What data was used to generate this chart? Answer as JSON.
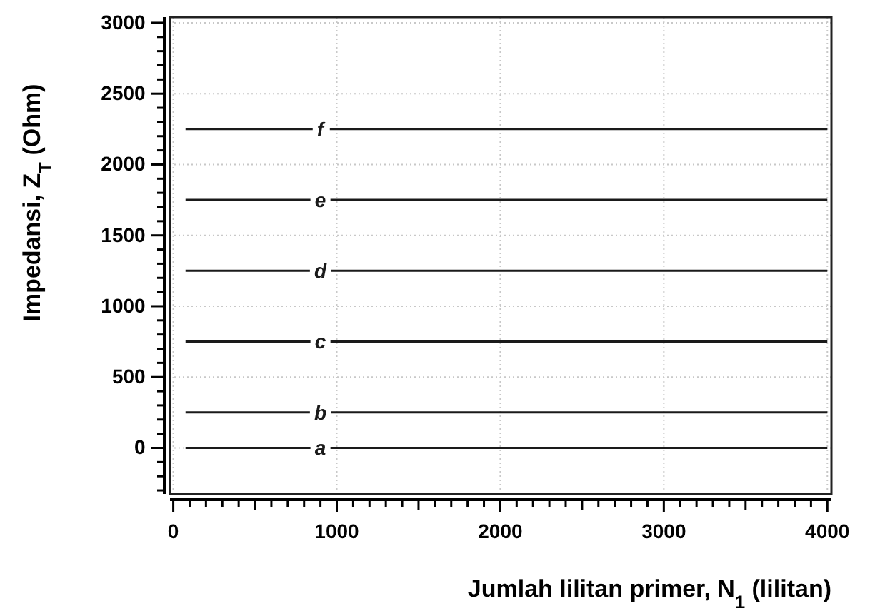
{
  "chart_data": {
    "type": "line",
    "xlabel": "Jumlah lilitan primer, N$_{1}$ (lilitan)",
    "ylabel": "Impedansi,  Z$_{T}$ (Ohm)",
    "xlim": [
      -20,
      4025
    ],
    "ylim": [
      -325,
      3040
    ],
    "xticks": [
      {
        "value": 0,
        "label": "0"
      },
      {
        "value": 100,
        "label": null
      },
      {
        "value": 200,
        "label": null
      },
      {
        "value": 300,
        "label": null
      },
      {
        "value": 400,
        "label": null
      },
      {
        "value": 500,
        "label": null
      },
      {
        "value": 600,
        "label": null
      },
      {
        "value": 700,
        "label": null
      },
      {
        "value": 800,
        "label": null
      },
      {
        "value": 900,
        "label": null
      },
      {
        "value": 1000,
        "label": "1000"
      },
      {
        "value": 1100,
        "label": null
      },
      {
        "value": 1200,
        "label": null
      },
      {
        "value": 1300,
        "label": null
      },
      {
        "value": 1400,
        "label": null
      },
      {
        "value": 1500,
        "label": null
      },
      {
        "value": 1600,
        "label": null
      },
      {
        "value": 1700,
        "label": null
      },
      {
        "value": 1800,
        "label": null
      },
      {
        "value": 1900,
        "label": null
      },
      {
        "value": 2000,
        "label": "2000"
      },
      {
        "value": 2100,
        "label": null
      },
      {
        "value": 2200,
        "label": null
      },
      {
        "value": 2300,
        "label": null
      },
      {
        "value": 2400,
        "label": null
      },
      {
        "value": 2500,
        "label": null
      },
      {
        "value": 2600,
        "label": null
      },
      {
        "value": 2700,
        "label": null
      },
      {
        "value": 2800,
        "label": null
      },
      {
        "value": 2900,
        "label": null
      },
      {
        "value": 3000,
        "label": "3000"
      },
      {
        "value": 3100,
        "label": null
      },
      {
        "value": 3200,
        "label": null
      },
      {
        "value": 3300,
        "label": null
      },
      {
        "value": 3400,
        "label": null
      },
      {
        "value": 3500,
        "label": null
      },
      {
        "value": 3600,
        "label": null
      },
      {
        "value": 3700,
        "label": null
      },
      {
        "value": 3800,
        "label": null
      },
      {
        "value": 3900,
        "label": null
      },
      {
        "value": 4000,
        "label": "4000"
      }
    ],
    "yticks": [
      {
        "value": -300,
        "label": null
      },
      {
        "value": -200,
        "label": null
      },
      {
        "value": -100,
        "label": null
      },
      {
        "value": 0,
        "label": "0"
      },
      {
        "value": 100,
        "label": null
      },
      {
        "value": 200,
        "label": null
      },
      {
        "value": 300,
        "label": null
      },
      {
        "value": 400,
        "label": null
      },
      {
        "value": 500,
        "label": "500"
      },
      {
        "value": 600,
        "label": null
      },
      {
        "value": 700,
        "label": null
      },
      {
        "value": 800,
        "label": null
      },
      {
        "value": 900,
        "label": null
      },
      {
        "value": 1000,
        "label": "1000"
      },
      {
        "value": 1100,
        "label": null
      },
      {
        "value": 1200,
        "label": null
      },
      {
        "value": 1300,
        "label": null
      },
      {
        "value": 1400,
        "label": null
      },
      {
        "value": 1500,
        "label": "1500"
      },
      {
        "value": 1600,
        "label": null
      },
      {
        "value": 1700,
        "label": null
      },
      {
        "value": 1800,
        "label": null
      },
      {
        "value": 1900,
        "label": null
      },
      {
        "value": 2000,
        "label": "2000"
      },
      {
        "value": 2100,
        "label": null
      },
      {
        "value": 2200,
        "label": null
      },
      {
        "value": 2300,
        "label": null
      },
      {
        "value": 2400,
        "label": null
      },
      {
        "value": 2500,
        "label": "2500"
      },
      {
        "value": 2600,
        "label": null
      },
      {
        "value": 2700,
        "label": null
      },
      {
        "value": 2800,
        "label": null
      },
      {
        "value": 2900,
        "label": null
      },
      {
        "value": 3000,
        "label": "3000"
      }
    ],
    "grid": true,
    "marker": "none",
    "line_style": "solid",
    "x": [
      75,
      4000
    ],
    "series": [
      {
        "name": "a",
        "color": "#1a1a1a",
        "values": [
          0,
          0
        ]
      },
      {
        "name": "b",
        "color": "#1a1a1a",
        "values": [
          250,
          250
        ]
      },
      {
        "name": "c",
        "color": "#1a1a1a",
        "values": [
          750,
          750
        ]
      },
      {
        "name": "d",
        "color": "#1a1a1a",
        "values": [
          1250,
          1250
        ]
      },
      {
        "name": "e",
        "color": "#1a1a1a",
        "values": [
          1750,
          1750
        ]
      },
      {
        "name": "f",
        "color": "#1a1a1a",
        "values": [
          2250,
          2250
        ]
      }
    ]
  }
}
